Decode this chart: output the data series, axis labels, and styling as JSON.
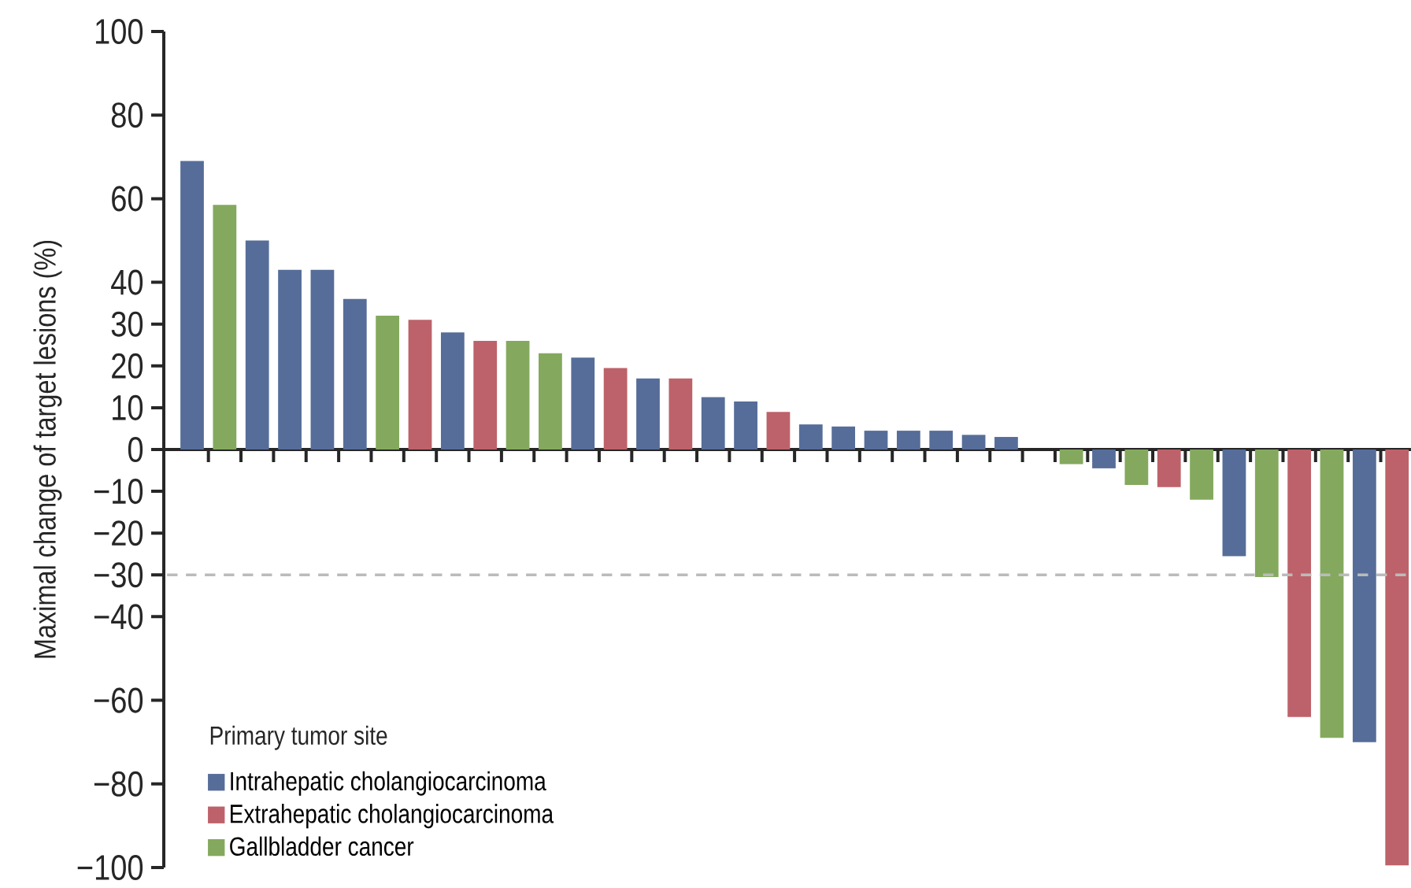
{
  "chart_data": {
    "type": "bar",
    "ylabel": "Maximal change of target lesions (%)",
    "legend_title": "Primary tumor site",
    "categories": [
      null,
      null,
      null,
      null,
      null,
      null,
      null,
      null,
      null,
      null,
      null,
      null,
      null,
      null,
      null,
      null,
      null,
      null,
      null,
      null,
      null,
      null,
      null,
      null,
      null,
      null,
      null,
      null,
      null,
      null,
      null,
      null,
      null,
      null,
      null,
      null,
      null,
      null
    ],
    "series": [
      {
        "name": "Intrahepatic cholangiocarcinoma",
        "color": "#566d99",
        "values": [
          69,
          null,
          50,
          43,
          43,
          36,
          null,
          null,
          28,
          null,
          null,
          null,
          22,
          null,
          17,
          null,
          12.5,
          11.5,
          null,
          6,
          5.5,
          4.5,
          4.5,
          4.5,
          3.5,
          3,
          null,
          null,
          -4.5,
          null,
          null,
          null,
          -25.5,
          null,
          null,
          null,
          -70,
          null
        ]
      },
      {
        "name": "Extrahepatic cholangiocarcinoma",
        "color": "#bd626a",
        "values": [
          null,
          null,
          null,
          null,
          null,
          null,
          null,
          31,
          null,
          26,
          null,
          null,
          null,
          19.5,
          null,
          17,
          null,
          null,
          9,
          null,
          null,
          null,
          null,
          null,
          null,
          null,
          null,
          null,
          null,
          null,
          -9,
          null,
          null,
          null,
          -64,
          null,
          null,
          -99.5
        ]
      },
      {
        "name": "Gallbladder cancer",
        "color": "#84a95e",
        "values": [
          null,
          58.5,
          null,
          null,
          null,
          null,
          32,
          null,
          null,
          null,
          26,
          23,
          null,
          null,
          null,
          null,
          null,
          null,
          null,
          null,
          null,
          null,
          null,
          null,
          null,
          null,
          null,
          -3.5,
          null,
          -8.5,
          null,
          -12,
          null,
          -30.5,
          null,
          -69,
          null,
          null
        ]
      }
    ],
    "ylim": [
      -100,
      100
    ],
    "yticks": [
      {
        "value": -100,
        "label": "−100"
      },
      {
        "value": -80,
        "label": "−80"
      },
      {
        "value": -60,
        "label": "−60"
      },
      {
        "value": -40,
        "label": "−40"
      },
      {
        "value": -30,
        "label": "−30"
      },
      {
        "value": -20,
        "label": "−20"
      },
      {
        "value": -10,
        "label": "−10"
      },
      0,
      10,
      20,
      30,
      40,
      60,
      80,
      100
    ],
    "ref_lines": [
      {
        "axis": "y",
        "value": -30,
        "color": "#bbbbbb",
        "line_style": "dashed"
      }
    ],
    "legend": "bottom left"
  }
}
